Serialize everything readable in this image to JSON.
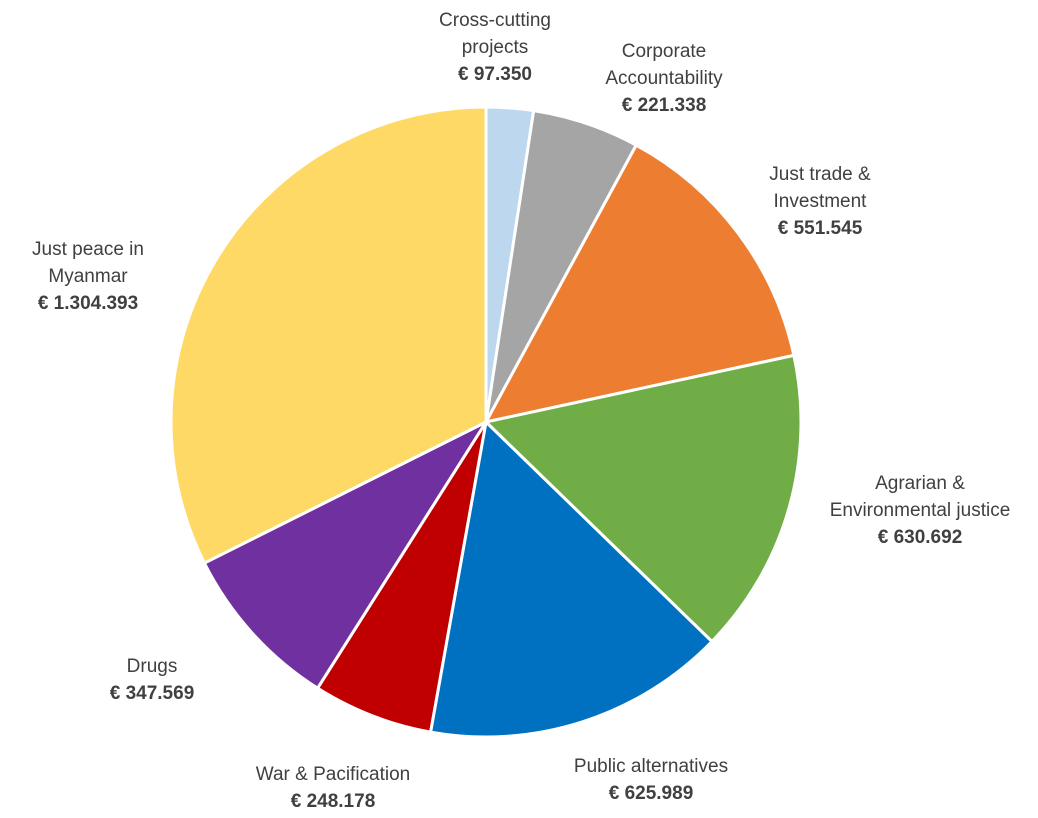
{
  "chart_data": {
    "type": "pie",
    "currency_symbol": "€",
    "slices": [
      {
        "label_lines": [
          "Cross-cutting",
          "projects"
        ],
        "value": 97350,
        "value_label": "€ 97.350",
        "color": "#BDD7EE"
      },
      {
        "label_lines": [
          "Corporate",
          "Accountability"
        ],
        "value": 221338,
        "value_label": "€ 221.338",
        "color": "#A5A5A5"
      },
      {
        "label_lines": [
          "Just trade &",
          "Investment"
        ],
        "value": 551545,
        "value_label": "€ 551.545",
        "color": "#ED7D31"
      },
      {
        "label_lines": [
          "Agrarian &",
          "Environmental justice"
        ],
        "value": 630692,
        "value_label": "€ 630.692",
        "color": "#70AD47"
      },
      {
        "label_lines": [
          "Public alternatives"
        ],
        "value": 625989,
        "value_label": "€ 625.989",
        "color": "#0070C0"
      },
      {
        "label_lines": [
          "War & Pacification"
        ],
        "value": 248178,
        "value_label": "€ 248.178",
        "color": "#C00000"
      },
      {
        "label_lines": [
          "Drugs"
        ],
        "value": 347569,
        "value_label": "€ 347.569",
        "color": "#7030A0"
      },
      {
        "label_lines": [
          "Just peace in",
          "Myanmar"
        ],
        "value": 1304393,
        "value_label": "€ 1.304.393",
        "color": "#FFD966"
      }
    ],
    "slice_border_color": "#FFFFFF",
    "legend": "none"
  }
}
